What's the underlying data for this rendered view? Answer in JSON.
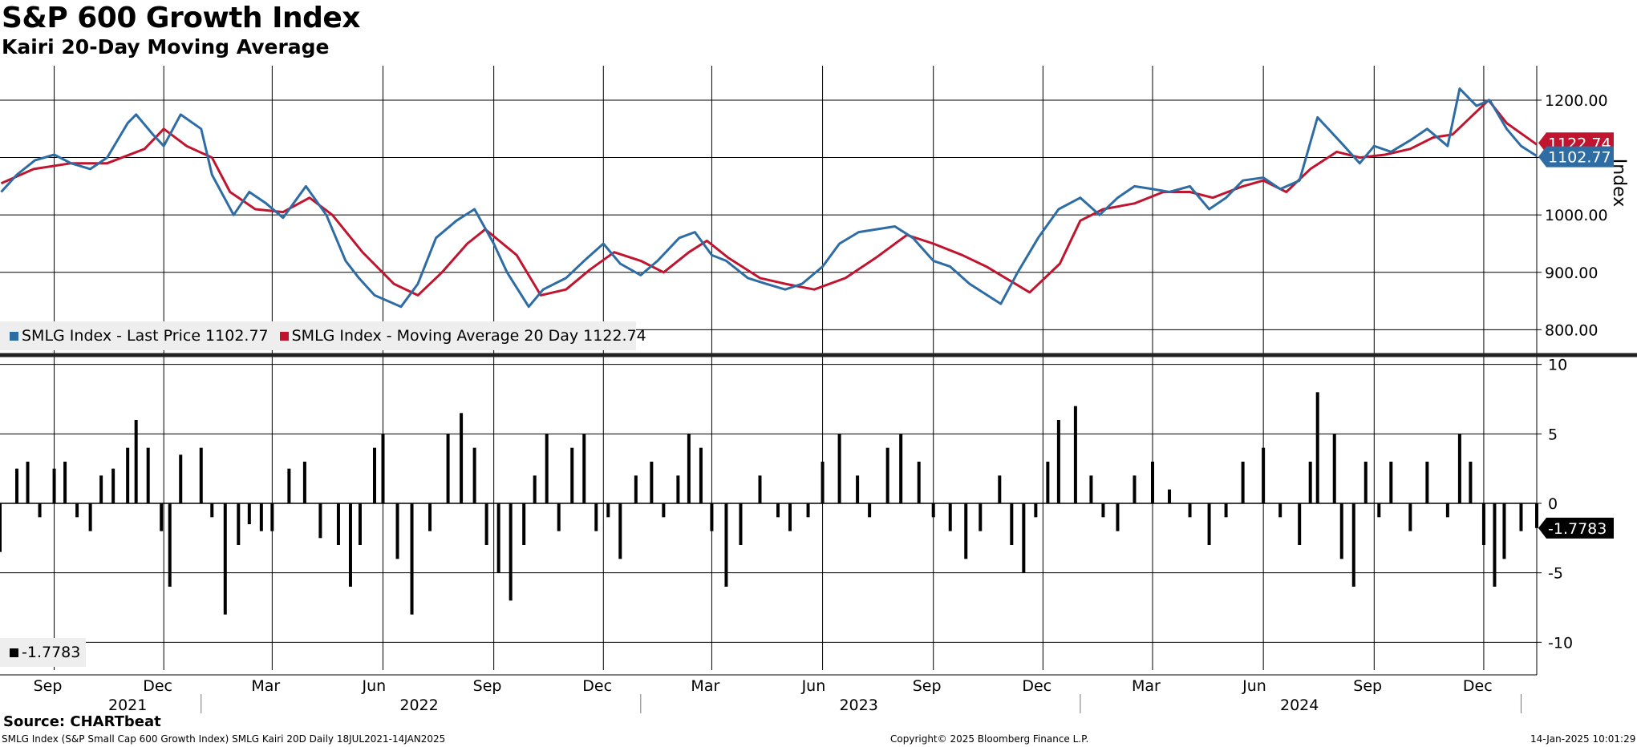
{
  "title": "S&P 600 Growth Index",
  "subtitle": "Kairi 20-Day Moving Average",
  "source": "Source: CHARTbeat",
  "footer": {
    "left": "SMLG Index (S&P Small Cap 600 Growth Index) SMLG Kairi 20D  Daily 18JUL2021-14JAN2025",
    "center": "Copyright© 2025 Bloomberg Finance L.P.",
    "right": "14-Jan-2025 10:01:29"
  },
  "colors": {
    "price": "#2e6ca4",
    "ma": "#c0152f",
    "bar": "#000000",
    "grid": "#000000"
  },
  "legend_top": {
    "price": "SMLG Index - Last Price 1102.77",
    "ma": "SMLG Index - Moving Average 20 Day 1122.74"
  },
  "legend_bottom": {
    "kairi": "-1.7783"
  },
  "chart_data": [
    {
      "type": "line",
      "ylabel": "Index",
      "ylim": [
        760,
        1260
      ],
      "yticks": [
        "1200.00",
        "1100.00",
        "1000.00",
        "900.00",
        "800.00"
      ],
      "ytick_values": [
        1200,
        1100,
        1000,
        900,
        800
      ],
      "x_month_labels": [
        "Sep",
        "Dec",
        "Mar",
        "Jun",
        "Sep",
        "Dec",
        "Mar",
        "Jun",
        "Sep",
        "Dec",
        "Mar",
        "Jun",
        "Sep",
        "Dec"
      ],
      "x_year_labels": [
        "2021",
        "2022",
        "2023",
        "2024"
      ],
      "x_start": "2021-07-18",
      "x_end": "2025-01-14",
      "last_price_label": "1102.77",
      "last_ma_label": "1122.74",
      "series": [
        {
          "name": "SMLG Index - Last Price",
          "dates": [
            "2021-07-19",
            "2021-08-01",
            "2021-08-16",
            "2021-09-01",
            "2021-09-15",
            "2021-10-01",
            "2021-10-15",
            "2021-11-01",
            "2021-11-08",
            "2021-11-22",
            "2021-12-01",
            "2021-12-15",
            "2022-01-01",
            "2022-01-10",
            "2022-01-28",
            "2022-02-10",
            "2022-02-24",
            "2022-03-10",
            "2022-03-29",
            "2022-04-15",
            "2022-05-01",
            "2022-05-12",
            "2022-05-25",
            "2022-06-16",
            "2022-06-30",
            "2022-07-15",
            "2022-08-01",
            "2022-08-16",
            "2022-09-01",
            "2022-09-12",
            "2022-09-30",
            "2022-10-12",
            "2022-10-31",
            "2022-11-15",
            "2022-12-01",
            "2022-12-15",
            "2023-01-01",
            "2023-01-15",
            "2023-02-02",
            "2023-02-15",
            "2023-03-01",
            "2023-03-13",
            "2023-03-31",
            "2023-04-15",
            "2023-05-01",
            "2023-05-15",
            "2023-06-01",
            "2023-06-15",
            "2023-07-01",
            "2023-07-31",
            "2023-08-15",
            "2023-09-01",
            "2023-09-15",
            "2023-10-01",
            "2023-10-27",
            "2023-11-10",
            "2023-11-27",
            "2023-12-14",
            "2024-01-01",
            "2024-01-17",
            "2024-02-01",
            "2024-02-15",
            "2024-03-01",
            "2024-03-15",
            "2024-04-01",
            "2024-04-17",
            "2024-05-01",
            "2024-05-15",
            "2024-06-01",
            "2024-06-15",
            "2024-07-01",
            "2024-07-16",
            "2024-08-05",
            "2024-08-20",
            "2024-09-01",
            "2024-09-15",
            "2024-10-01",
            "2024-10-15",
            "2024-11-01",
            "2024-11-11",
            "2024-11-25",
            "2024-12-06",
            "2024-12-20",
            "2025-01-01",
            "2025-01-14"
          ],
          "values": [
            1040,
            1070,
            1095,
            1105,
            1090,
            1080,
            1100,
            1160,
            1175,
            1140,
            1120,
            1175,
            1150,
            1070,
            1000,
            1040,
            1020,
            995,
            1050,
            1000,
            920,
            890,
            860,
            840,
            880,
            960,
            990,
            1010,
            950,
            900,
            840,
            870,
            890,
            920,
            950,
            915,
            895,
            920,
            960,
            970,
            930,
            920,
            890,
            880,
            870,
            880,
            910,
            950,
            970,
            980,
            960,
            920,
            910,
            880,
            845,
            900,
            960,
            1010,
            1030,
            1000,
            1030,
            1050,
            1045,
            1040,
            1050,
            1010,
            1030,
            1060,
            1065,
            1045,
            1060,
            1170,
            1125,
            1090,
            1120,
            1110,
            1130,
            1150,
            1120,
            1220,
            1190,
            1200,
            1150,
            1120,
            1102.77
          ]
        },
        {
          "name": "SMLG Index - Moving Average 20 Day",
          "dates": [
            "2021-07-19",
            "2021-08-15",
            "2021-09-15",
            "2021-10-15",
            "2021-11-15",
            "2021-12-01",
            "2021-12-20",
            "2022-01-10",
            "2022-01-25",
            "2022-02-15",
            "2022-03-10",
            "2022-04-01",
            "2022-04-20",
            "2022-05-15",
            "2022-06-10",
            "2022-06-30",
            "2022-07-20",
            "2022-08-10",
            "2022-08-25",
            "2022-09-20",
            "2022-10-10",
            "2022-10-31",
            "2022-11-20",
            "2022-12-10",
            "2023-01-01",
            "2023-01-20",
            "2023-02-10",
            "2023-02-25",
            "2023-03-15",
            "2023-04-10",
            "2023-05-01",
            "2023-05-25",
            "2023-06-20",
            "2023-07-15",
            "2023-08-10",
            "2023-09-01",
            "2023-09-25",
            "2023-10-15",
            "2023-10-31",
            "2023-11-20",
            "2023-12-15",
            "2024-01-01",
            "2024-01-20",
            "2024-02-15",
            "2024-03-10",
            "2024-04-01",
            "2024-04-20",
            "2024-05-15",
            "2024-06-01",
            "2024-06-20",
            "2024-07-10",
            "2024-08-01",
            "2024-08-20",
            "2024-09-10",
            "2024-10-01",
            "2024-10-20",
            "2024-11-05",
            "2024-11-20",
            "2024-12-05",
            "2024-12-20",
            "2025-01-14"
          ],
          "values": [
            1055,
            1080,
            1090,
            1090,
            1115,
            1150,
            1120,
            1100,
            1040,
            1010,
            1005,
            1030,
            1000,
            935,
            880,
            860,
            900,
            950,
            975,
            930,
            860,
            870,
            905,
            935,
            920,
            900,
            935,
            955,
            925,
            890,
            880,
            870,
            890,
            925,
            965,
            950,
            930,
            910,
            890,
            865,
            915,
            990,
            1010,
            1020,
            1040,
            1040,
            1030,
            1050,
            1060,
            1040,
            1080,
            1110,
            1100,
            1105,
            1115,
            1135,
            1140,
            1170,
            1200,
            1160,
            1122.74
          ]
        }
      ]
    },
    {
      "type": "bar",
      "name": "Kairi 20D",
      "ylim": [
        -12,
        10.5
      ],
      "yticks": [
        "10",
        "5",
        "0",
        "-5",
        "-10"
      ],
      "ytick_values": [
        10,
        5,
        0,
        -5,
        -10
      ],
      "last_value_label": "-1.7783",
      "dates": [
        "2021-07-18",
        "2021-08-01",
        "2021-08-10",
        "2021-08-20",
        "2021-09-01",
        "2021-09-10",
        "2021-09-20",
        "2021-10-01",
        "2021-10-10",
        "2021-10-20",
        "2021-11-01",
        "2021-11-08",
        "2021-11-18",
        "2021-11-29",
        "2021-12-06",
        "2021-12-15",
        "2022-01-01",
        "2022-01-10",
        "2022-01-21",
        "2022-02-01",
        "2022-02-10",
        "2022-02-20",
        "2022-03-01",
        "2022-03-15",
        "2022-03-28",
        "2022-04-10",
        "2022-04-25",
        "2022-05-05",
        "2022-05-13",
        "2022-05-25",
        "2022-06-01",
        "2022-06-13",
        "2022-06-25",
        "2022-07-10",
        "2022-07-25",
        "2022-08-05",
        "2022-08-16",
        "2022-08-26",
        "2022-09-05",
        "2022-09-15",
        "2022-09-26",
        "2022-10-05",
        "2022-10-15",
        "2022-10-25",
        "2022-11-05",
        "2022-11-15",
        "2022-11-25",
        "2022-12-05",
        "2022-12-15",
        "2022-12-28",
        "2023-01-10",
        "2023-01-20",
        "2023-02-01",
        "2023-02-10",
        "2023-02-20",
        "2023-03-01",
        "2023-03-13",
        "2023-03-25",
        "2023-04-10",
        "2023-04-25",
        "2023-05-05",
        "2023-05-20",
        "2023-06-01",
        "2023-06-15",
        "2023-06-30",
        "2023-07-10",
        "2023-07-25",
        "2023-08-05",
        "2023-08-20",
        "2023-09-01",
        "2023-09-15",
        "2023-09-28",
        "2023-10-10",
        "2023-10-26",
        "2023-11-05",
        "2023-11-15",
        "2023-11-25",
        "2023-12-05",
        "2023-12-14",
        "2023-12-28",
        "2024-01-10",
        "2024-01-20",
        "2024-02-01",
        "2024-02-15",
        "2024-03-01",
        "2024-03-15",
        "2024-04-01",
        "2024-04-17",
        "2024-05-01",
        "2024-05-15",
        "2024-06-01",
        "2024-06-15",
        "2024-07-01",
        "2024-07-10",
        "2024-07-16",
        "2024-07-30",
        "2024-08-05",
        "2024-08-15",
        "2024-08-25",
        "2024-09-05",
        "2024-09-15",
        "2024-10-01",
        "2024-10-15",
        "2024-11-01",
        "2024-11-11",
        "2024-11-20",
        "2024-12-01",
        "2024-12-10",
        "2024-12-18",
        "2025-01-01",
        "2025-01-14"
      ],
      "values": [
        -3.5,
        2.5,
        3,
        -1,
        2.5,
        3,
        -1,
        -2,
        2,
        2.5,
        4,
        6,
        4,
        -2,
        -6,
        3.5,
        4,
        -1,
        -8,
        -3,
        -1.5,
        -2,
        -2,
        2.5,
        3,
        -2.5,
        -3,
        -6,
        -3,
        4,
        5,
        -4,
        -8,
        -2,
        5,
        6.5,
        4,
        -3,
        -5,
        -7,
        -3,
        2,
        5,
        -2,
        4,
        5,
        -2,
        -1,
        -4,
        2,
        3,
        -1,
        2,
        5,
        4,
        -2,
        -6,
        -3,
        2,
        -1,
        -2,
        -1,
        3,
        5,
        2,
        -1,
        4,
        5,
        3,
        -1,
        -2,
        -4,
        -2,
        2,
        -3,
        -5,
        -1,
        3,
        6,
        7,
        2,
        -1,
        -2,
        2,
        3,
        1,
        -1,
        -3,
        -1,
        3,
        4,
        -1,
        -3,
        3,
        8,
        5,
        -4,
        -6,
        3,
        -1,
        3,
        -2,
        3,
        -1,
        5,
        3,
        -3,
        -6,
        -4,
        -2,
        -1.7783
      ]
    }
  ]
}
